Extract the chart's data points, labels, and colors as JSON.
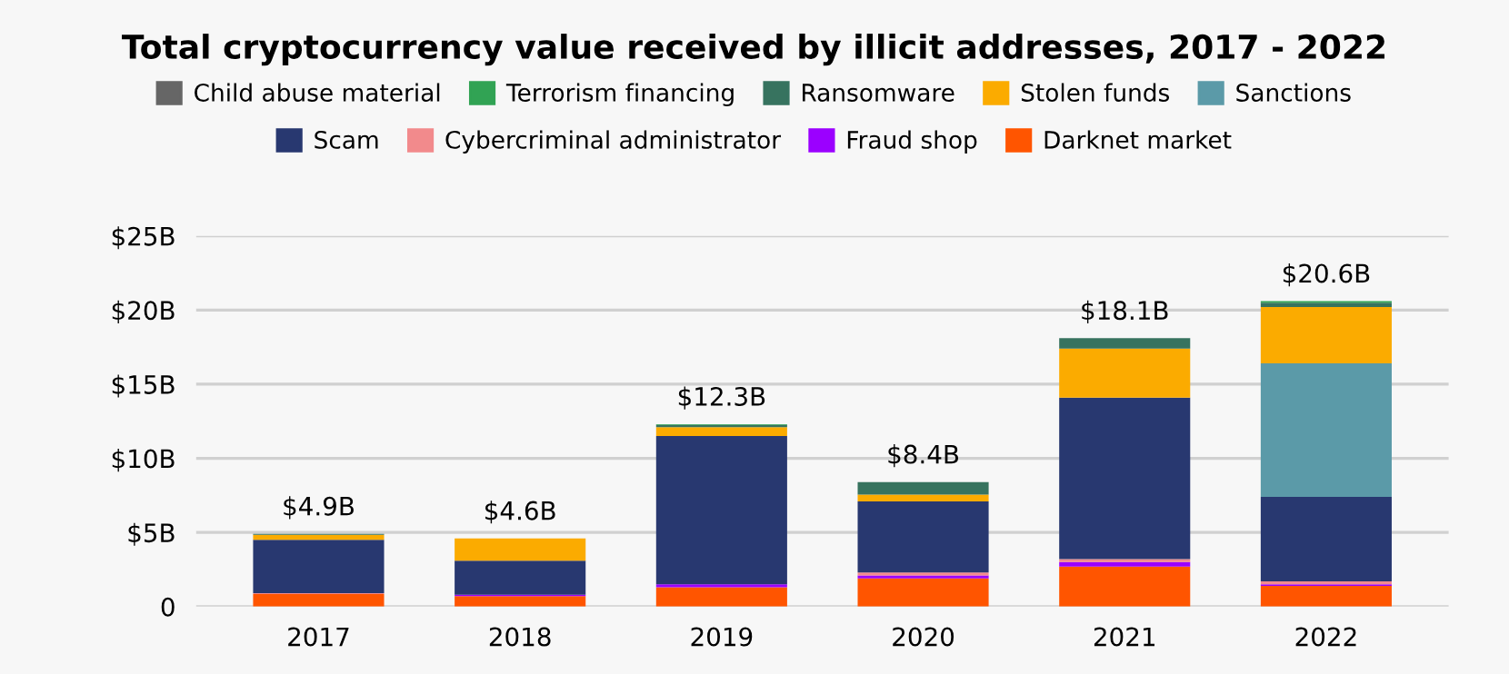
{
  "chart_data": {
    "type": "bar",
    "stacked": true,
    "title": "Total cryptocurrency value received by illicit addresses, 2017 - 2022",
    "categories": [
      "2017",
      "2018",
      "2019",
      "2020",
      "2021",
      "2022"
    ],
    "series": [
      {
        "name": "Darknet market",
        "color": "#ff5500",
        "values": [
          0.85,
          0.7,
          1.3,
          1.9,
          2.7,
          1.4
        ]
      },
      {
        "name": "Fraud shop",
        "color": "#9b00ff",
        "values": [
          null,
          0.1,
          0.2,
          0.2,
          0.3,
          0.1
        ]
      },
      {
        "name": "Cybercriminal administrator",
        "color": "#f28a8c",
        "values": [
          0.05,
          null,
          null,
          0.2,
          0.2,
          0.2
        ]
      },
      {
        "name": "Scam",
        "color": "#283870",
        "values": [
          3.6,
          2.3,
          10.0,
          4.8,
          10.9,
          5.7
        ]
      },
      {
        "name": "Sanctions",
        "color": "#5b9aa8",
        "values": [
          null,
          null,
          null,
          null,
          null,
          9.0
        ]
      },
      {
        "name": "Stolen funds",
        "color": "#fbab00",
        "values": [
          0.35,
          1.5,
          0.6,
          0.45,
          3.3,
          3.8
        ]
      },
      {
        "name": "Ransomware",
        "color": "#37735f",
        "values": [
          0.05,
          null,
          0.15,
          0.85,
          0.7,
          0.3
        ]
      },
      {
        "name": "Terrorism financing",
        "color": "#31a354",
        "values": [
          null,
          null,
          0.05,
          null,
          null,
          0.1
        ]
      },
      {
        "name": "Child abuse material",
        "color": "#666666",
        "values": [
          null,
          null,
          null,
          null,
          null,
          null
        ]
      }
    ],
    "totals": [
      "$4.9B",
      "$4.6B",
      "$12.3B",
      "$8.4B",
      "$18.1B",
      "$20.6B"
    ],
    "ylim": [
      0,
      25
    ],
    "yticks": [
      {
        "value": 0,
        "label": "0"
      },
      {
        "value": 5,
        "label": "$5B"
      },
      {
        "value": 10,
        "label": "$10B"
      },
      {
        "value": 15,
        "label": "$15B"
      },
      {
        "value": 20,
        "label": "$20B"
      },
      {
        "value": 25,
        "label": "$25B"
      }
    ],
    "grid": "y",
    "legend": "top"
  }
}
